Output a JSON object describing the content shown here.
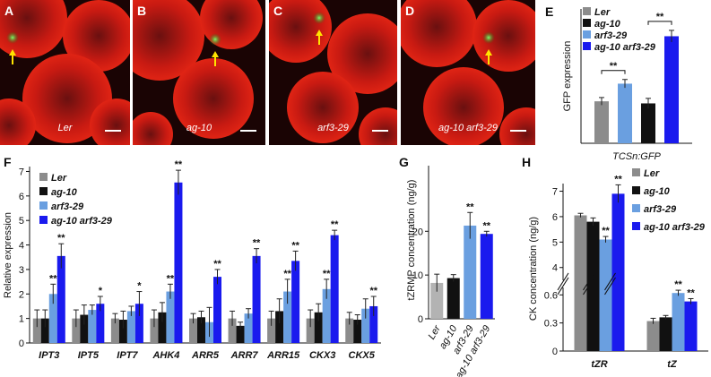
{
  "panels": [
    {
      "letter": "A",
      "caption": "Ler"
    },
    {
      "letter": "B",
      "caption": "ag-10"
    },
    {
      "letter": "C",
      "caption": "arf3-29"
    },
    {
      "letter": "D",
      "caption": "ag-10 arf3-29"
    }
  ],
  "chart_data": [
    {
      "type": "bar",
      "panel": "E",
      "ylabel": "GFP expression",
      "categories": [
        "TCSn:GFP"
      ],
      "ylim": [
        0,
        3.2
      ],
      "legend": "upper left",
      "series": [
        {
          "name": "Ler",
          "color": "#8c8c8c",
          "values": [
            1.0
          ],
          "errors": [
            0.09
          ],
          "significance": [
            null
          ]
        },
        {
          "name": "ag-10",
          "color": "#111111",
          "values": [
            0.95
          ],
          "errors": [
            0.12
          ],
          "significance": [
            null
          ]
        },
        {
          "name": "arf3-29",
          "color": "#6a9fe0",
          "values": [
            1.42
          ],
          "errors": [
            0.1
          ],
          "significance": [
            "**"
          ]
        },
        {
          "name": "ag-10 arf3-29",
          "color": "#1a1aee",
          "values": [
            2.55
          ],
          "errors": [
            0.14
          ],
          "significance": [
            "**"
          ]
        }
      ]
    },
    {
      "type": "bar",
      "panel": "F",
      "ylabel": "Relative expression",
      "categories": [
        "IPT3",
        "IPT5",
        "IPT7",
        "AHK4",
        "ARR5",
        "ARR7",
        "ARR15",
        "CKX3",
        "CKX5"
      ],
      "ylim": [
        0,
        7.2
      ],
      "yticks": [
        0,
        1,
        2,
        3,
        4,
        5,
        6,
        7
      ],
      "legend": "upper left",
      "series": [
        {
          "name": "Ler",
          "color": "#8c8c8c",
          "values": [
            1,
            1,
            1,
            1,
            1,
            1,
            1,
            1,
            1
          ],
          "errors": [
            0.35,
            0.35,
            0.2,
            0.35,
            0.2,
            0.3,
            0.3,
            0.35,
            0.25
          ],
          "significance": [
            null,
            null,
            null,
            null,
            null,
            null,
            null,
            null,
            null
          ]
        },
        {
          "name": "ag-10",
          "color": "#111111",
          "values": [
            1,
            1.15,
            0.95,
            1.25,
            1.05,
            0.7,
            1.3,
            1.25,
            0.95
          ],
          "errors": [
            0.35,
            0.4,
            0.35,
            0.4,
            0.25,
            0.15,
            0.5,
            0.35,
            0.2
          ],
          "significance": [
            null,
            null,
            null,
            null,
            null,
            null,
            null,
            null,
            null
          ]
        },
        {
          "name": "arf3-29",
          "color": "#6a9fe0",
          "values": [
            2.0,
            1.35,
            1.3,
            2.1,
            0.85,
            1.2,
            2.1,
            2.2,
            1.4
          ],
          "errors": [
            0.4,
            0.2,
            0.2,
            0.3,
            0.6,
            0.2,
            0.5,
            0.4,
            0.4
          ],
          "significance": [
            "**",
            null,
            null,
            "**",
            null,
            null,
            "**",
            "**",
            null
          ]
        },
        {
          "name": "ag-10 arf3-29",
          "color": "#1a1aee",
          "values": [
            3.55,
            1.6,
            1.6,
            6.55,
            2.7,
            3.55,
            3.35,
            4.4,
            1.5
          ],
          "errors": [
            0.5,
            0.3,
            0.5,
            0.5,
            0.3,
            0.3,
            0.4,
            0.2,
            0.4
          ],
          "significance": [
            "**",
            "*",
            "*",
            "**",
            "**",
            "**",
            "**",
            "**",
            "**"
          ]
        }
      ]
    },
    {
      "type": "bar",
      "panel": "G",
      "ylabel": "tZRMP concentration (ng/g)",
      "categories": [
        "Ler",
        "ag-10",
        "arf3-29",
        "ag-10 arf3-29"
      ],
      "values": [
        8.2,
        9.3,
        21.3,
        19.4
      ],
      "errors": [
        2.0,
        0.8,
        3.0,
        0.6
      ],
      "colors": [
        "#b3b3b3",
        "#111111",
        "#6a9fe0",
        "#1a1aee"
      ],
      "significance": [
        null,
        null,
        "**",
        "**"
      ],
      "ylim": [
        0,
        35
      ],
      "yticks": [
        0,
        10,
        20
      ]
    },
    {
      "type": "bar",
      "panel": "H",
      "ylabel": "CK concentration (ng/g)",
      "categories": [
        "tZR",
        "tZ"
      ],
      "ylim": [
        0,
        7.3
      ],
      "axis_break": [
        0.68,
        3.5
      ],
      "yticks": [
        0,
        0.3,
        0.6,
        4,
        5,
        6,
        7
      ],
      "legend": "upper right",
      "series": [
        {
          "name": "Ler",
          "color": "#8c8c8c",
          "values": [
            6.05,
            0.32
          ],
          "errors": [
            0.08,
            0.03
          ],
          "significance": [
            null,
            null
          ]
        },
        {
          "name": "ag-10",
          "color": "#111111",
          "values": [
            5.8,
            0.36
          ],
          "errors": [
            0.15,
            0.02
          ],
          "significance": [
            null,
            null
          ]
        },
        {
          "name": "arf3-29",
          "color": "#6a9fe0",
          "values": [
            5.1,
            0.62
          ],
          "errors": [
            0.12,
            0.03
          ],
          "significance": [
            "**",
            "**"
          ]
        },
        {
          "name": "ag-10 arf3-29",
          "color": "#1a1aee",
          "values": [
            6.9,
            0.53
          ],
          "errors": [
            0.35,
            0.03
          ],
          "significance": [
            "**",
            "**"
          ]
        }
      ]
    }
  ]
}
